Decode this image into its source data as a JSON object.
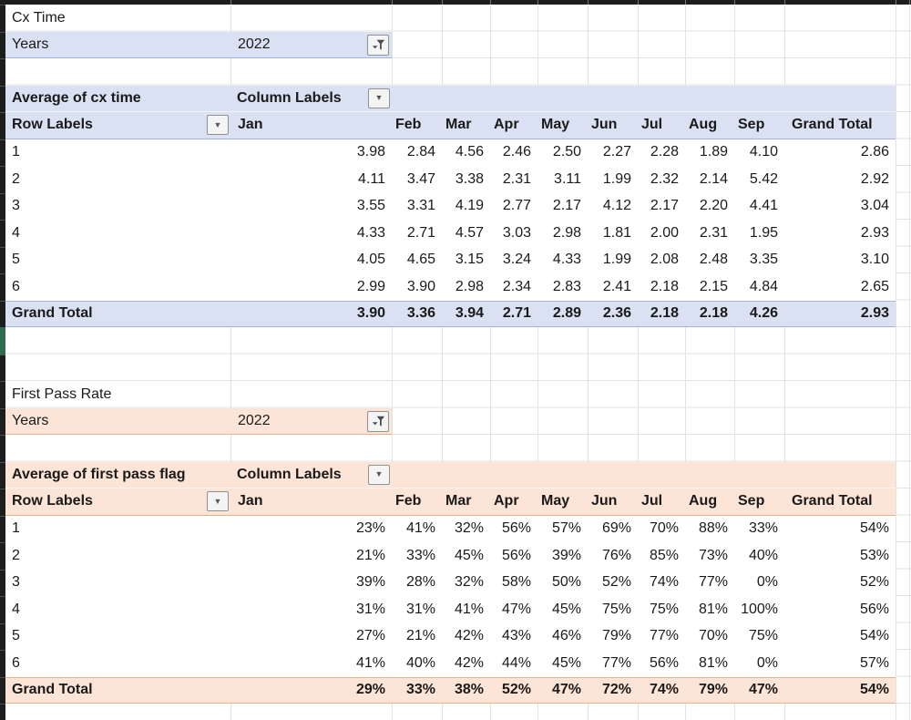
{
  "section1": {
    "title": "Cx Time",
    "filter_label": "Years",
    "filter_value": "2022",
    "measure": "Average of cx time",
    "column_labels": "Column Labels",
    "row_labels": "Row Labels",
    "months": [
      "Jan",
      "Feb",
      "Mar",
      "Apr",
      "May",
      "Jun",
      "Jul",
      "Aug",
      "Sep"
    ],
    "grand_total_label": "Grand Total",
    "rows": [
      {
        "label": "1",
        "values": [
          "3.98",
          "2.84",
          "4.56",
          "2.46",
          "2.50",
          "2.27",
          "2.28",
          "1.89",
          "4.10"
        ],
        "total": "2.86"
      },
      {
        "label": "2",
        "values": [
          "4.11",
          "3.47",
          "3.38",
          "2.31",
          "3.11",
          "1.99",
          "2.32",
          "2.14",
          "5.42"
        ],
        "total": "2.92"
      },
      {
        "label": "3",
        "values": [
          "3.55",
          "3.31",
          "4.19",
          "2.77",
          "2.17",
          "4.12",
          "2.17",
          "2.20",
          "4.41"
        ],
        "total": "3.04"
      },
      {
        "label": "4",
        "values": [
          "4.33",
          "2.71",
          "4.57",
          "3.03",
          "2.98",
          "1.81",
          "2.00",
          "2.31",
          "1.95"
        ],
        "total": "2.93"
      },
      {
        "label": "5",
        "values": [
          "4.05",
          "4.65",
          "3.15",
          "3.24",
          "4.33",
          "1.99",
          "2.08",
          "2.48",
          "3.35"
        ],
        "total": "3.10"
      },
      {
        "label": "6",
        "values": [
          "2.99",
          "3.90",
          "2.98",
          "2.34",
          "2.83",
          "2.41",
          "2.18",
          "2.15",
          "4.84"
        ],
        "total": "2.65"
      }
    ],
    "grand_total": {
      "label": "Grand Total",
      "values": [
        "3.90",
        "3.36",
        "3.94",
        "2.71",
        "2.89",
        "2.36",
        "2.18",
        "2.18",
        "4.26"
      ],
      "total": "2.93"
    },
    "colors": {
      "fill": "#d9e1f2",
      "border": "#a3b2d9"
    }
  },
  "section2": {
    "title": "First Pass Rate",
    "filter_label": "Years",
    "filter_value": "2022",
    "measure": "Average of first pass flag",
    "column_labels": "Column Labels",
    "row_labels": "Row Labels",
    "months": [
      "Jan",
      "Feb",
      "Mar",
      "Apr",
      "May",
      "Jun",
      "Jul",
      "Aug",
      "Sep"
    ],
    "grand_total_label": "Grand Total",
    "rows": [
      {
        "label": "1",
        "values": [
          "23%",
          "41%",
          "32%",
          "56%",
          "57%",
          "69%",
          "70%",
          "88%",
          "33%"
        ],
        "total": "54%"
      },
      {
        "label": "2",
        "values": [
          "21%",
          "33%",
          "45%",
          "56%",
          "39%",
          "76%",
          "85%",
          "73%",
          "40%"
        ],
        "total": "53%"
      },
      {
        "label": "3",
        "values": [
          "39%",
          "28%",
          "32%",
          "58%",
          "50%",
          "52%",
          "74%",
          "77%",
          "0%"
        ],
        "total": "52%"
      },
      {
        "label": "4",
        "values": [
          "31%",
          "31%",
          "41%",
          "47%",
          "45%",
          "75%",
          "75%",
          "81%",
          "100%"
        ],
        "total": "56%"
      },
      {
        "label": "5",
        "values": [
          "27%",
          "21%",
          "42%",
          "43%",
          "46%",
          "79%",
          "77%",
          "70%",
          "75%"
        ],
        "total": "54%"
      },
      {
        "label": "6",
        "values": [
          "41%",
          "40%",
          "42%",
          "44%",
          "45%",
          "77%",
          "56%",
          "81%",
          "0%"
        ],
        "total": "57%"
      }
    ],
    "grand_total": {
      "label": "Grand Total",
      "values": [
        "29%",
        "33%",
        "38%",
        "52%",
        "47%",
        "72%",
        "74%",
        "79%",
        "47%"
      ],
      "total": "54%"
    },
    "colors": {
      "fill": "#fce4d6",
      "border": "#edaf85"
    }
  },
  "chrome": {
    "selected_row_marker_color": "#2f6b4c",
    "dropdown_glyph": "▼",
    "icons": {
      "dropdown": "chevron-down-icon",
      "filter": "filter-funnel-icon"
    }
  }
}
